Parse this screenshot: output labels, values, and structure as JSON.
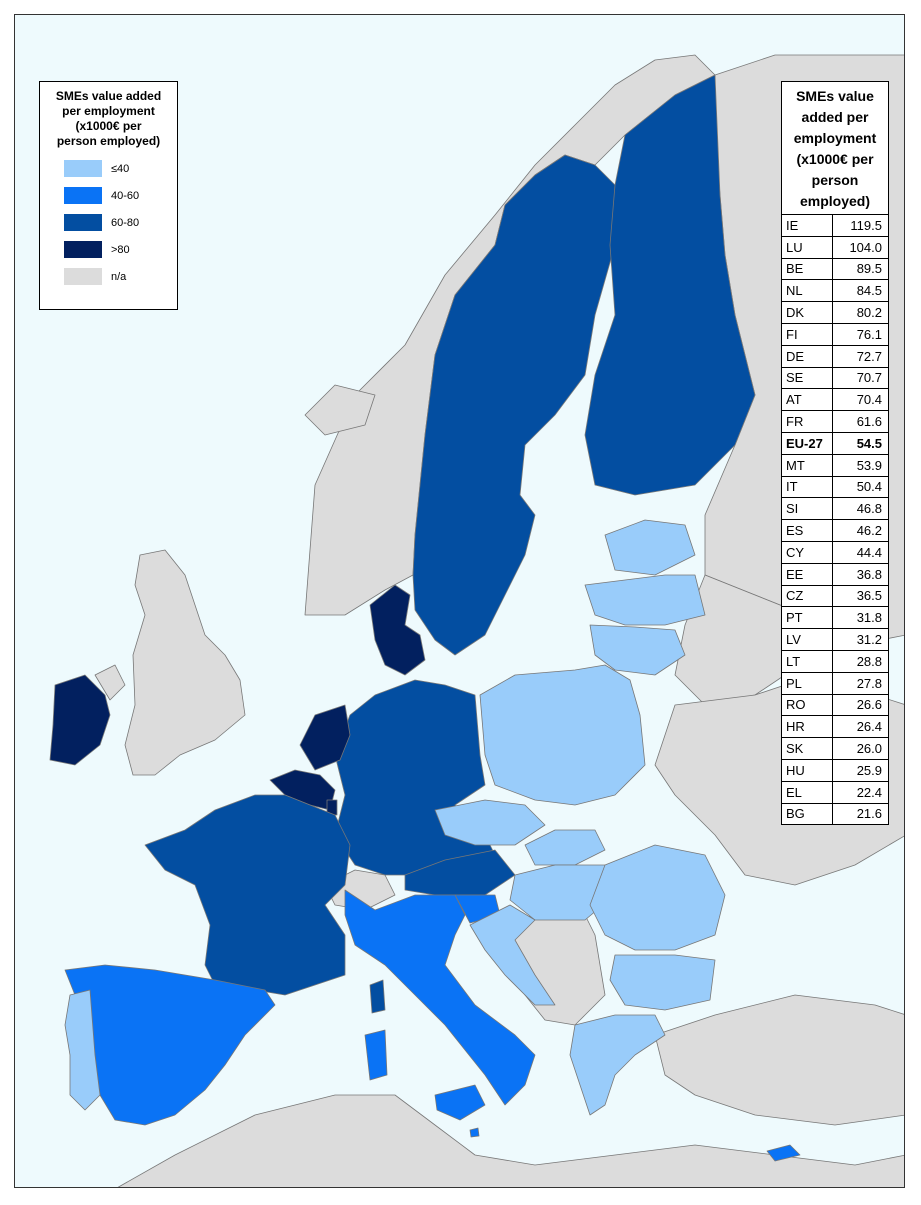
{
  "legend": {
    "title": "SMEs value added per employment (x1000€ per person employed)",
    "title_lines": [
      "SMEs value added",
      "per employment",
      "(x1000€ per",
      "person employed)"
    ],
    "classes": [
      {
        "label": "≤40",
        "color": "#99ccfa"
      },
      {
        "label": "40-60",
        "color": "#0a73f5"
      },
      {
        "label": "60-80",
        "color": "#034ea1"
      },
      {
        "label": ">80",
        "color": "#02205f"
      },
      {
        "label": "n/a",
        "color": "#dcdcdc"
      }
    ]
  },
  "colors": {
    "sea": "#eefafd",
    "no_data": "#dcdcdc",
    "border": "#777777"
  },
  "table": {
    "title_lines": [
      "SMEs value",
      "added per",
      "employment",
      "(x1000€ per",
      "person",
      "employed)"
    ],
    "rows": [
      {
        "code": "IE",
        "value": "119.5"
      },
      {
        "code": "LU",
        "value": "104.0"
      },
      {
        "code": "BE",
        "value": "89.5"
      },
      {
        "code": "NL",
        "value": "84.5"
      },
      {
        "code": "DK",
        "value": "80.2"
      },
      {
        "code": "FI",
        "value": "76.1"
      },
      {
        "code": "DE",
        "value": "72.7"
      },
      {
        "code": "SE",
        "value": "70.7"
      },
      {
        "code": "AT",
        "value": "70.4"
      },
      {
        "code": "FR",
        "value": "61.6"
      },
      {
        "code": "EU-27",
        "value": "54.5",
        "bold": true
      },
      {
        "code": "MT",
        "value": "53.9"
      },
      {
        "code": "IT",
        "value": "50.4"
      },
      {
        "code": "SI",
        "value": "46.8"
      },
      {
        "code": "ES",
        "value": "46.2"
      },
      {
        "code": "CY",
        "value": "44.4"
      },
      {
        "code": "EE",
        "value": "36.8"
      },
      {
        "code": "CZ",
        "value": "36.5"
      },
      {
        "code": "PT",
        "value": "31.8"
      },
      {
        "code": "LV",
        "value": "31.2"
      },
      {
        "code": "LT",
        "value": "28.8"
      },
      {
        "code": "PL",
        "value": "27.8"
      },
      {
        "code": "RO",
        "value": "26.6"
      },
      {
        "code": "HR",
        "value": "26.4"
      },
      {
        "code": "SK",
        "value": "26.0"
      },
      {
        "code": "HU",
        "value": "25.9"
      },
      {
        "code": "EL",
        "value": "22.4"
      },
      {
        "code": "BG",
        "value": "21.6"
      }
    ]
  }
}
